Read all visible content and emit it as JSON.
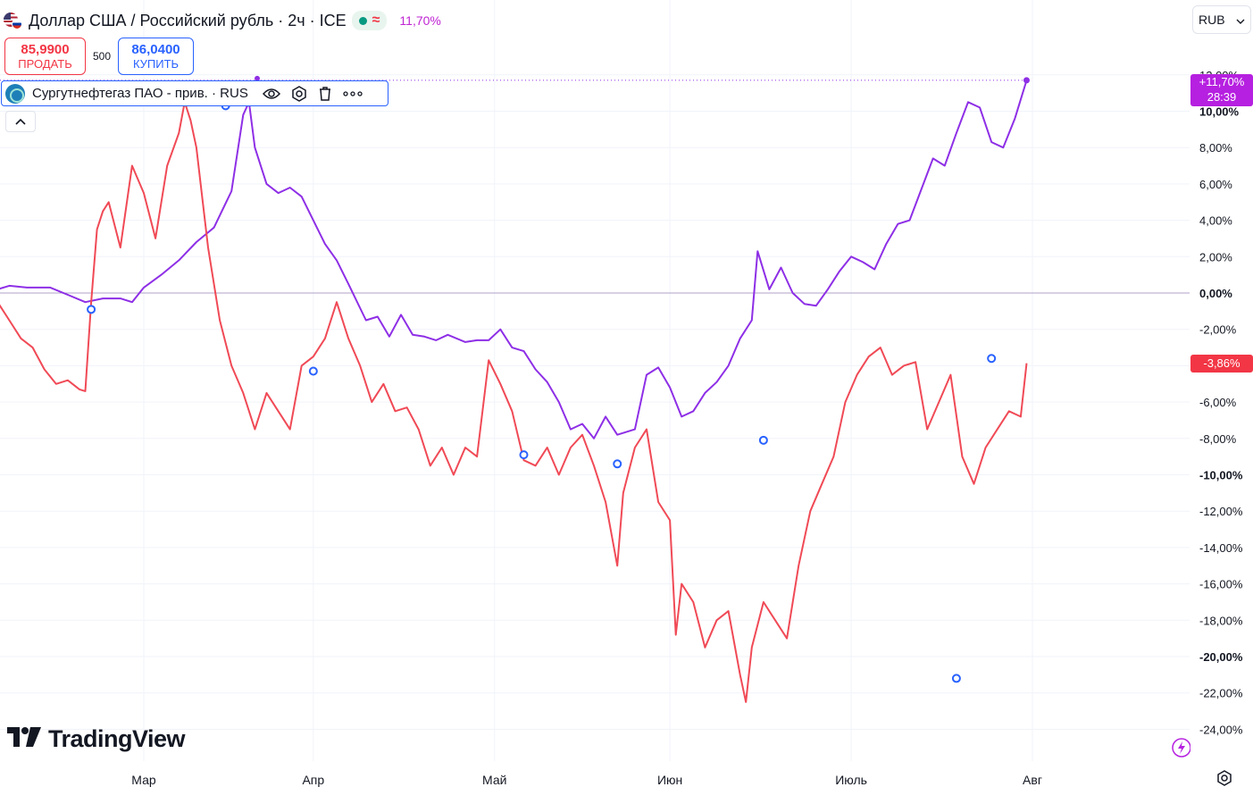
{
  "header": {
    "title": "Доллар США / Российский рубль · 2ч · ICE",
    "status_approx": "≈",
    "change_pct": "11,70%"
  },
  "trade": {
    "sell_price": "85,9900",
    "sell_label": "ПРОДАТЬ",
    "spread": "500",
    "buy_price": "86,0400",
    "buy_label": "КУПИТЬ"
  },
  "compare_legend": {
    "label": "Сургутнефтегаз ПАО - прив. · RUS"
  },
  "currency": {
    "value": "RUB"
  },
  "brand": {
    "name": "TradingView"
  },
  "badges": {
    "main_value": "+11,70%",
    "main_timer": "28:39",
    "compare_value": "-3,86%"
  },
  "colors": {
    "main_series": "#8e2fe6",
    "compare_series": "#f04a56",
    "badge_main": "#b620e0",
    "badge_compare": "#f23645",
    "gridline": "#f0f3fa",
    "zero_line": "#b2a0c8"
  },
  "chart_data": {
    "type": "line",
    "title": "Доллар США / Российский рубль · 2ч · ICE",
    "ylabel": "",
    "ylim": [
      -25,
      12.5
    ],
    "y_ticks": [
      "12,00%",
      "10,00%",
      "8,00%",
      "6,00%",
      "4,00%",
      "2,00%",
      "0,00%",
      "-2,00%",
      "-4,00%",
      "-6,00%",
      "-8,00%",
      "-10,00%",
      "-12,00%",
      "-14,00%",
      "-16,00%",
      "-18,00%",
      "-20,00%",
      "-22,00%",
      "-24,00%"
    ],
    "y_tick_values": [
      12,
      10,
      8,
      6,
      4,
      2,
      0,
      -2,
      -4,
      -6,
      -8,
      -10,
      -12,
      -14,
      -16,
      -18,
      -20,
      -22,
      -24
    ],
    "x_ticks": [
      "Мар",
      "Апр",
      "Май",
      "Июн",
      "Июль",
      "Авг"
    ],
    "x_tick_days": [
      28,
      57,
      88,
      118,
      149,
      180
    ],
    "x_range_days": [
      3,
      204
    ],
    "series": [
      {
        "name": "Доллар США / Российский рубль",
        "color": "#8e2fe6",
        "points": [
          [
            3,
            0.2
          ],
          [
            5,
            0.4
          ],
          [
            8,
            0.3
          ],
          [
            12,
            0.3
          ],
          [
            15,
            -0.1
          ],
          [
            18,
            -0.5
          ],
          [
            21,
            -0.3
          ],
          [
            24,
            -0.3
          ],
          [
            26,
            -0.5
          ],
          [
            28,
            0.3
          ],
          [
            31,
            1.0
          ],
          [
            34,
            1.8
          ],
          [
            37,
            2.8
          ],
          [
            40,
            3.6
          ],
          [
            43,
            5.6
          ],
          [
            45,
            9.8
          ],
          [
            46,
            10.5
          ],
          [
            47,
            8.0
          ],
          [
            49,
            6.0
          ],
          [
            51,
            5.5
          ],
          [
            53,
            5.8
          ],
          [
            55,
            5.3
          ],
          [
            57,
            4.0
          ],
          [
            59,
            2.7
          ],
          [
            61,
            1.8
          ],
          [
            63,
            0.5
          ],
          [
            66,
            -1.5
          ],
          [
            68,
            -1.3
          ],
          [
            70,
            -2.4
          ],
          [
            72,
            -1.2
          ],
          [
            74,
            -2.3
          ],
          [
            76,
            -2.4
          ],
          [
            78,
            -2.6
          ],
          [
            80,
            -2.3
          ],
          [
            83,
            -2.7
          ],
          [
            85,
            -2.6
          ],
          [
            87,
            -2.6
          ],
          [
            89,
            -2.0
          ],
          [
            91,
            -3.0
          ],
          [
            93,
            -3.2
          ],
          [
            95,
            -4.2
          ],
          [
            97,
            -4.9
          ],
          [
            99,
            -6.0
          ],
          [
            101,
            -7.5
          ],
          [
            103,
            -7.2
          ],
          [
            105,
            -8.0
          ],
          [
            107,
            -6.8
          ],
          [
            109,
            -7.8
          ],
          [
            112,
            -7.5
          ],
          [
            114,
            -4.5
          ],
          [
            116,
            -4.1
          ],
          [
            118,
            -5.2
          ],
          [
            120,
            -6.8
          ],
          [
            122,
            -6.5
          ],
          [
            124,
            -5.5
          ],
          [
            126,
            -4.9
          ],
          [
            128,
            -4.0
          ],
          [
            130,
            -2.5
          ],
          [
            132,
            -1.5
          ],
          [
            133,
            2.3
          ],
          [
            135,
            0.2
          ],
          [
            137,
            1.4
          ],
          [
            139,
            0.0
          ],
          [
            141,
            -0.6
          ],
          [
            143,
            -0.7
          ],
          [
            145,
            0.2
          ],
          [
            147,
            1.2
          ],
          [
            149,
            2.0
          ],
          [
            151,
            1.7
          ],
          [
            153,
            1.3
          ],
          [
            155,
            2.7
          ],
          [
            157,
            3.8
          ],
          [
            159,
            4.0
          ],
          [
            161,
            5.7
          ],
          [
            163,
            7.4
          ],
          [
            165,
            7.0
          ],
          [
            167,
            8.8
          ],
          [
            169,
            10.5
          ],
          [
            171,
            10.2
          ],
          [
            173,
            8.3
          ],
          [
            175,
            8.0
          ],
          [
            177,
            9.6
          ],
          [
            179,
            11.7
          ]
        ]
      },
      {
        "name": "Сургутнефтегаз ПАО - прив.",
        "color": "#f04a56",
        "points": [
          [
            3,
            -0.5
          ],
          [
            5,
            -1.5
          ],
          [
            7,
            -2.5
          ],
          [
            9,
            -3.0
          ],
          [
            11,
            -4.2
          ],
          [
            13,
            -5.0
          ],
          [
            15,
            -4.8
          ],
          [
            17,
            -5.3
          ],
          [
            18,
            -5.4
          ],
          [
            19,
            -0.5
          ],
          [
            20,
            3.5
          ],
          [
            21,
            4.5
          ],
          [
            22,
            5.0
          ],
          [
            24,
            2.5
          ],
          [
            26,
            7.0
          ],
          [
            28,
            5.5
          ],
          [
            30,
            3.0
          ],
          [
            32,
            7.0
          ],
          [
            34,
            8.8
          ],
          [
            35,
            10.5
          ],
          [
            36,
            9.5
          ],
          [
            37,
            8.0
          ],
          [
            39,
            2.5
          ],
          [
            41,
            -1.5
          ],
          [
            43,
            -4.0
          ],
          [
            45,
            -5.5
          ],
          [
            47,
            -7.5
          ],
          [
            49,
            -5.5
          ],
          [
            51,
            -6.5
          ],
          [
            53,
            -7.5
          ],
          [
            55,
            -4.0
          ],
          [
            57,
            -3.5
          ],
          [
            59,
            -2.5
          ],
          [
            61,
            -0.5
          ],
          [
            63,
            -2.5
          ],
          [
            65,
            -4.0
          ],
          [
            67,
            -6.0
          ],
          [
            69,
            -5.0
          ],
          [
            71,
            -6.5
          ],
          [
            73,
            -6.3
          ],
          [
            75,
            -7.5
          ],
          [
            77,
            -9.5
          ],
          [
            79,
            -8.5
          ],
          [
            81,
            -10.0
          ],
          [
            83,
            -8.5
          ],
          [
            85,
            -9.0
          ],
          [
            87,
            -3.7
          ],
          [
            89,
            -5.0
          ],
          [
            91,
            -6.5
          ],
          [
            93,
            -9.2
          ],
          [
            95,
            -9.5
          ],
          [
            97,
            -8.5
          ],
          [
            99,
            -10.0
          ],
          [
            101,
            -8.5
          ],
          [
            103,
            -7.8
          ],
          [
            105,
            -9.5
          ],
          [
            107,
            -11.5
          ],
          [
            109,
            -15.0
          ],
          [
            110,
            -11.0
          ],
          [
            112,
            -8.5
          ],
          [
            114,
            -7.5
          ],
          [
            116,
            -11.5
          ],
          [
            118,
            -12.5
          ],
          [
            119,
            -18.8
          ],
          [
            120,
            -16.0
          ],
          [
            122,
            -17.0
          ],
          [
            124,
            -19.5
          ],
          [
            126,
            -18.0
          ],
          [
            128,
            -17.5
          ],
          [
            130,
            -21.0
          ],
          [
            131,
            -22.5
          ],
          [
            132,
            -19.5
          ],
          [
            134,
            -17.0
          ],
          [
            136,
            -18.0
          ],
          [
            138,
            -19.0
          ],
          [
            140,
            -15.0
          ],
          [
            142,
            -12.0
          ],
          [
            144,
            -10.5
          ],
          [
            146,
            -9.0
          ],
          [
            148,
            -6.0
          ],
          [
            150,
            -4.5
          ],
          [
            152,
            -3.5
          ],
          [
            154,
            -3.0
          ],
          [
            156,
            -4.5
          ],
          [
            158,
            -4.0
          ],
          [
            160,
            -3.8
          ],
          [
            162,
            -7.5
          ],
          [
            164,
            -6.0
          ],
          [
            166,
            -4.5
          ],
          [
            168,
            -9.0
          ],
          [
            170,
            -10.5
          ],
          [
            172,
            -8.5
          ],
          [
            174,
            -7.5
          ],
          [
            176,
            -6.5
          ],
          [
            178,
            -6.8
          ],
          [
            179,
            -3.86
          ]
        ]
      }
    ],
    "compare_markers": [
      [
        19,
        -0.9
      ],
      [
        42,
        10.3
      ],
      [
        57,
        -4.3
      ],
      [
        93,
        -8.9
      ],
      [
        109,
        -9.4
      ],
      [
        134,
        -8.1
      ],
      [
        167,
        -21.2
      ],
      [
        173,
        -3.6
      ]
    ],
    "main_marker": [
      179,
      11.7
    ],
    "legend": "top-left",
    "grid": true
  }
}
